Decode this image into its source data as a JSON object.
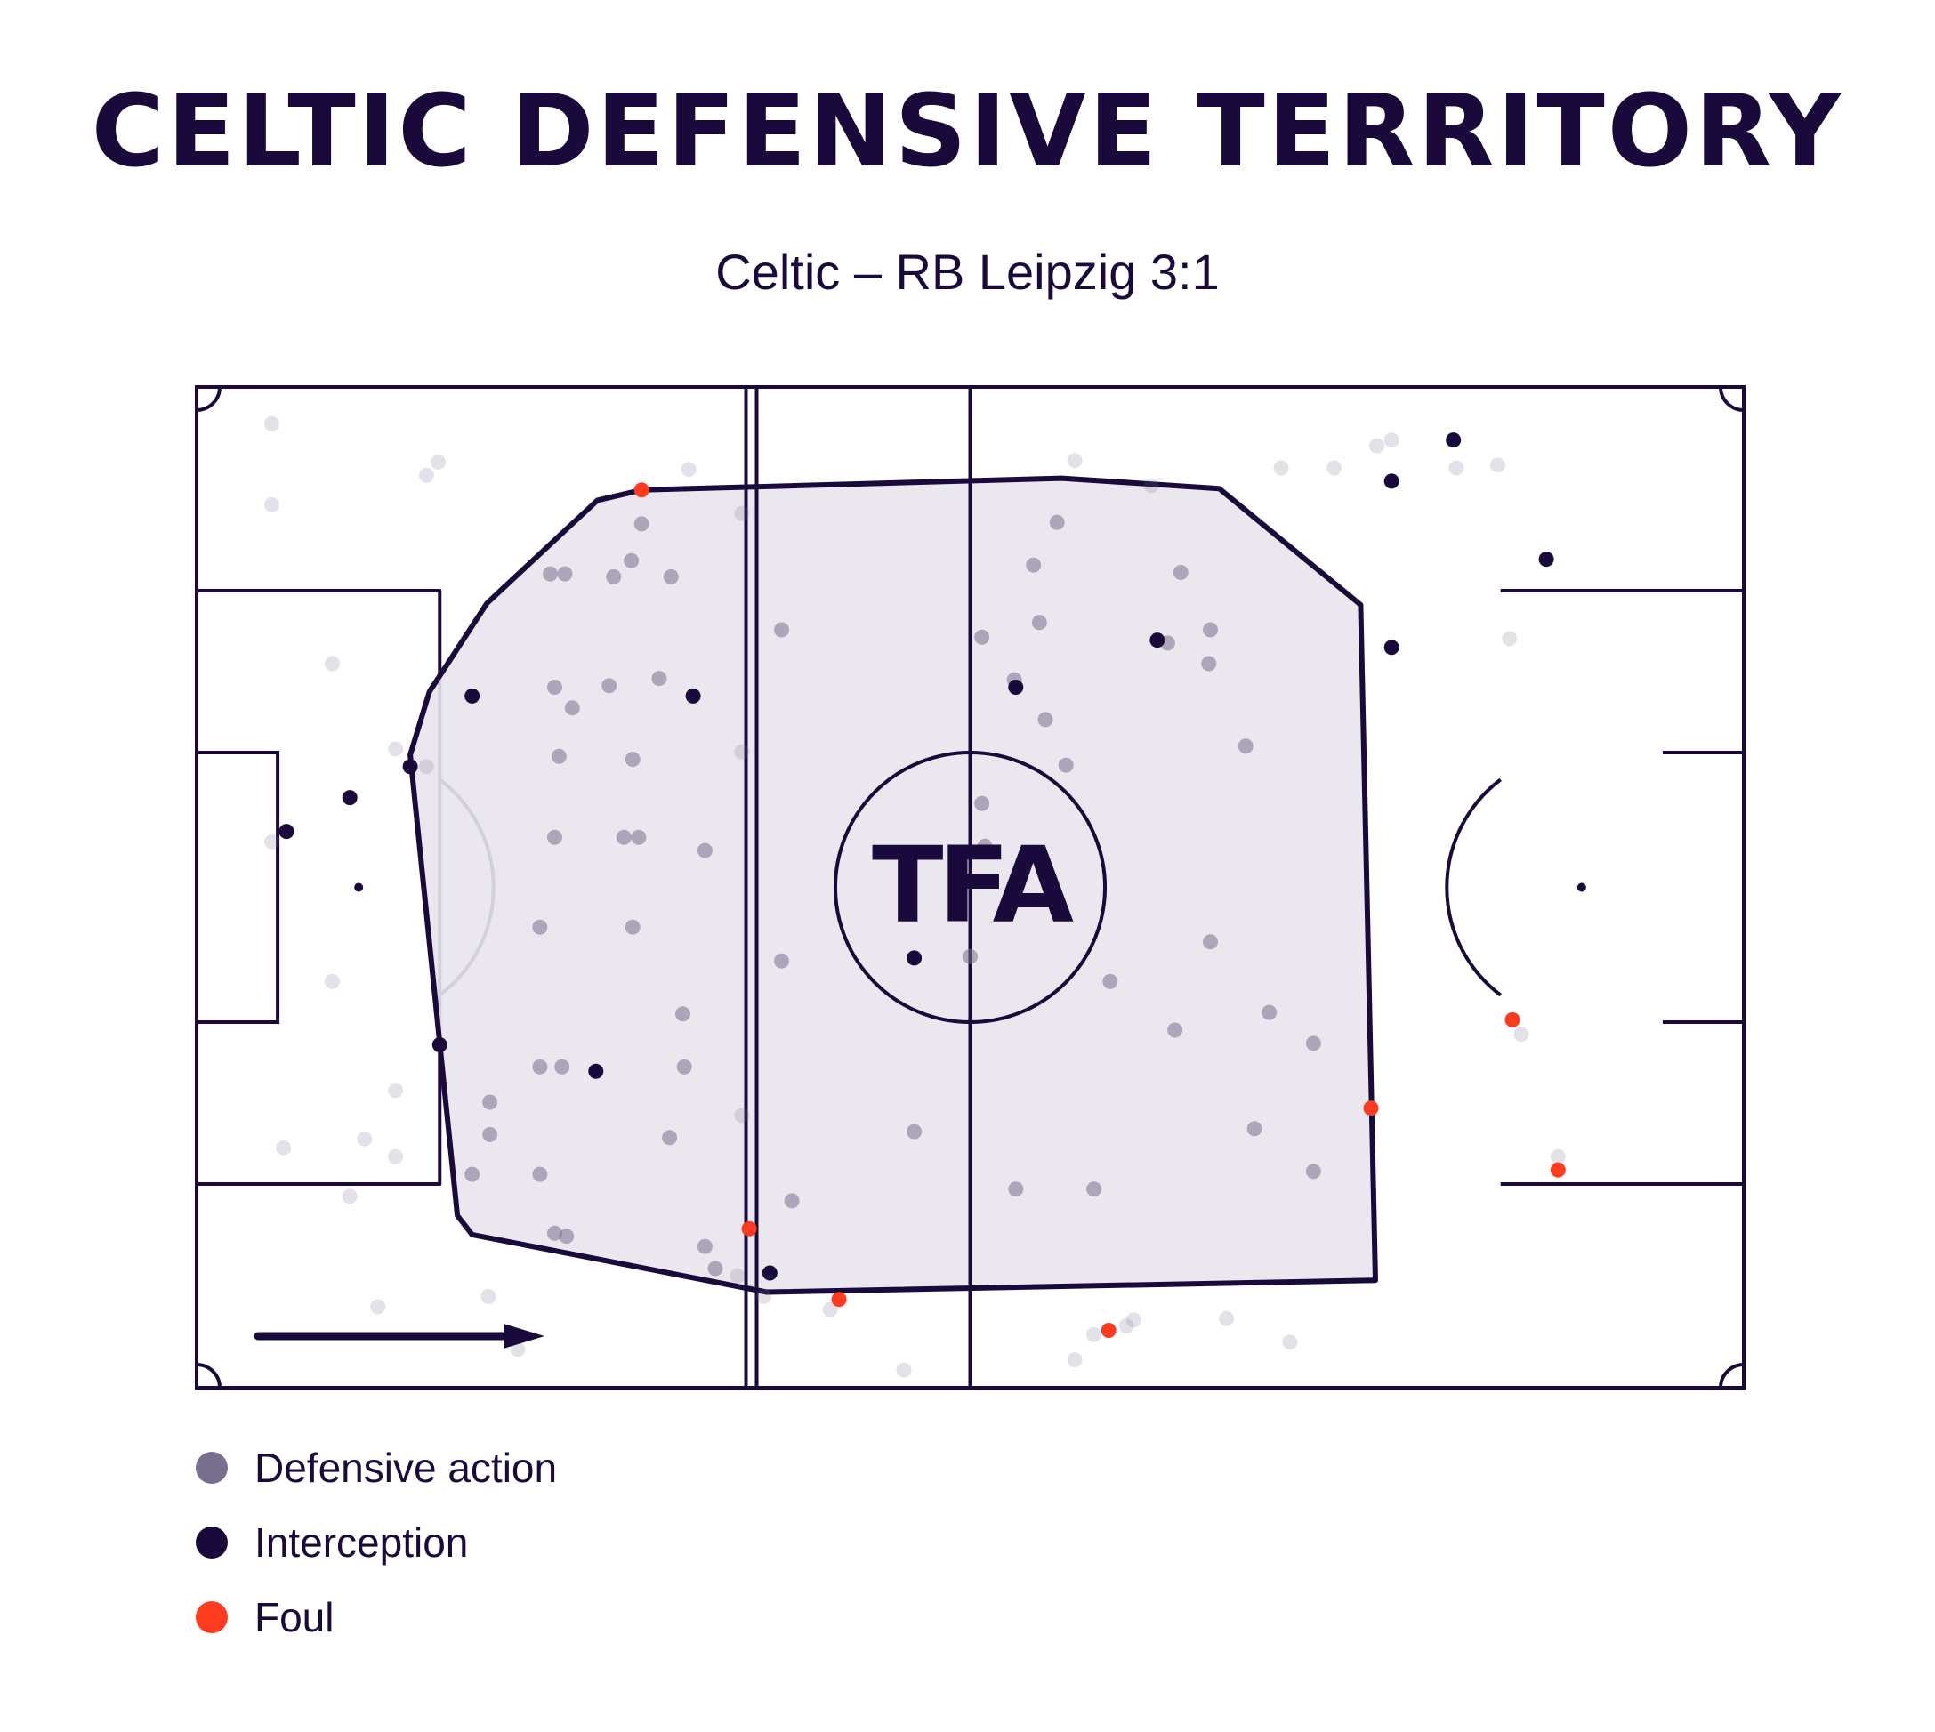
{
  "title": "CELTIC DEFENSIVE TERRITORY",
  "subtitle": "Celtic – RB Leipzig 3:1",
  "logo_text": "TFA",
  "colors": {
    "ink": "#1a0a3c",
    "territory_fill": "#e8e6ec",
    "defensive_action": "#7a6e8e",
    "interception": "#1a0a3c",
    "foul": "#ff3b1f"
  },
  "legend": [
    {
      "label": "Defensive action",
      "key": "defensive_action"
    },
    {
      "label": "Interception",
      "key": "interception"
    },
    {
      "label": "Foul",
      "key": "foul"
    }
  ],
  "chart_data": {
    "type": "scatter",
    "title": "CELTIC DEFENSIVE TERRITORY",
    "subtitle": "Celtic – RB Leipzig 3:1",
    "pitch": {
      "length": 105,
      "width": 68,
      "attack_direction": "left-to-right"
    },
    "xlim": [
      0,
      105
    ],
    "ylim": [
      0,
      68
    ],
    "territory_hull": [
      [
        27.2,
        60.3
      ],
      [
        30.2,
        61.0
      ],
      [
        58.7,
        61.8
      ],
      [
        69.4,
        61.1
      ],
      [
        79.0,
        53.2
      ],
      [
        80.0,
        7.3
      ],
      [
        38.7,
        6.5
      ],
      [
        18.7,
        10.4
      ],
      [
        17.7,
        11.7
      ],
      [
        14.5,
        43.0
      ],
      [
        15.8,
        47.3
      ],
      [
        19.7,
        53.3
      ]
    ],
    "series": [
      {
        "name": "Defensive action",
        "opacity": 0.55,
        "points": [
          [
            30.2,
            58.7
          ],
          [
            28.3,
            55.1
          ],
          [
            29.5,
            56.2
          ],
          [
            24.0,
            55.3
          ],
          [
            28.0,
            47.7
          ],
          [
            25.0,
            55.3
          ],
          [
            32.2,
            55.1
          ],
          [
            31.4,
            48.2
          ],
          [
            29.6,
            42.7
          ],
          [
            24.3,
            47.6
          ],
          [
            25.5,
            46.2
          ],
          [
            24.6,
            42.9
          ],
          [
            24.3,
            37.4
          ],
          [
            29.0,
            37.4
          ],
          [
            30.0,
            37.4
          ],
          [
            34.5,
            36.5
          ],
          [
            29.6,
            31.3
          ],
          [
            33.0,
            25.4
          ],
          [
            23.3,
            31.3
          ],
          [
            23.3,
            21.8
          ],
          [
            24.8,
            21.8
          ],
          [
            33.1,
            21.8
          ],
          [
            19.9,
            19.4
          ],
          [
            19.9,
            17.2
          ],
          [
            32.1,
            17.0
          ],
          [
            18.7,
            14.5
          ],
          [
            23.3,
            14.5
          ],
          [
            24.3,
            10.5
          ],
          [
            25.1,
            10.3
          ],
          [
            34.5,
            9.6
          ],
          [
            35.2,
            8.1
          ],
          [
            39.7,
            51.5
          ],
          [
            39.7,
            29.0
          ],
          [
            53.5,
            36.8
          ],
          [
            53.3,
            51.0
          ],
          [
            55.5,
            48.1
          ],
          [
            58.4,
            58.8
          ],
          [
            56.8,
            55.9
          ],
          [
            57.2,
            52.0
          ],
          [
            57.6,
            45.4
          ],
          [
            59.0,
            42.3
          ],
          [
            53.3,
            39.7
          ],
          [
            40.4,
            12.7
          ],
          [
            48.7,
            17.4
          ],
          [
            52.5,
            29.3
          ],
          [
            55.6,
            13.5
          ],
          [
            60.9,
            13.5
          ],
          [
            62.0,
            27.6
          ],
          [
            66.4,
            24.3
          ],
          [
            66.8,
            55.4
          ],
          [
            68.8,
            51.5
          ],
          [
            65.9,
            50.6
          ],
          [
            68.7,
            49.2
          ],
          [
            71.2,
            43.6
          ],
          [
            68.8,
            30.3
          ],
          [
            72.8,
            25.5
          ],
          [
            75.8,
            23.4
          ],
          [
            71.8,
            17.6
          ],
          [
            75.8,
            14.7
          ]
        ]
      },
      {
        "name": "Defensive action",
        "opacity": 0.2,
        "points": [
          [
            5.1,
            65.5
          ],
          [
            15.6,
            62.0
          ],
          [
            16.4,
            62.9
          ],
          [
            33.4,
            62.4
          ],
          [
            5.1,
            60.0
          ],
          [
            9.2,
            49.2
          ],
          [
            13.5,
            43.4
          ],
          [
            15.6,
            42.2
          ],
          [
            5.1,
            37.1
          ],
          [
            9.2,
            27.6
          ],
          [
            13.5,
            20.2
          ],
          [
            11.4,
            16.9
          ],
          [
            13.5,
            15.7
          ],
          [
            10.4,
            13.0
          ],
          [
            5.9,
            16.3
          ],
          [
            12.3,
            5.5
          ],
          [
            19.8,
            6.2
          ],
          [
            21.8,
            2.6
          ],
          [
            36.7,
            7.6
          ],
          [
            38.5,
            6.2
          ],
          [
            43.0,
            5.3
          ],
          [
            48.0,
            1.2
          ],
          [
            37.0,
            18.5
          ],
          [
            37.0,
            43.2
          ],
          [
            37.0,
            59.4
          ],
          [
            59.6,
            63.0
          ],
          [
            64.8,
            61.3
          ],
          [
            73.6,
            62.5
          ],
          [
            77.2,
            62.5
          ],
          [
            80.1,
            64.0
          ],
          [
            81.1,
            64.4
          ],
          [
            85.5,
            62.5
          ],
          [
            81.1,
            61.6
          ],
          [
            88.3,
            62.7
          ],
          [
            89.1,
            50.9
          ],
          [
            89.9,
            24.0
          ],
          [
            92.4,
            15.7
          ],
          [
            60.9,
            3.6
          ],
          [
            63.1,
            4.2
          ],
          [
            63.6,
            4.6
          ],
          [
            69.9,
            4.7
          ],
          [
            74.2,
            3.1
          ],
          [
            59.6,
            1.9
          ]
        ]
      },
      {
        "name": "Interception",
        "points": [
          [
            85.3,
            64.4
          ],
          [
            81.1,
            61.6
          ],
          [
            91.6,
            56.3
          ],
          [
            65.2,
            50.8
          ],
          [
            81.1,
            50.3
          ],
          [
            55.6,
            47.6
          ],
          [
            18.7,
            47.0
          ],
          [
            33.7,
            47.0
          ],
          [
            14.5,
            42.2
          ],
          [
            10.4,
            40.1
          ],
          [
            6.1,
            37.8
          ],
          [
            48.7,
            29.2
          ],
          [
            16.5,
            23.3
          ],
          [
            27.1,
            21.5
          ],
          [
            38.9,
            7.8
          ]
        ]
      },
      {
        "name": "Foul",
        "points": [
          [
            30.2,
            61.0
          ],
          [
            89.3,
            25.0
          ],
          [
            79.7,
            19.0
          ],
          [
            92.4,
            14.8
          ],
          [
            37.5,
            10.8
          ],
          [
            43.6,
            6.0
          ],
          [
            61.9,
            3.9
          ]
        ]
      }
    ]
  }
}
